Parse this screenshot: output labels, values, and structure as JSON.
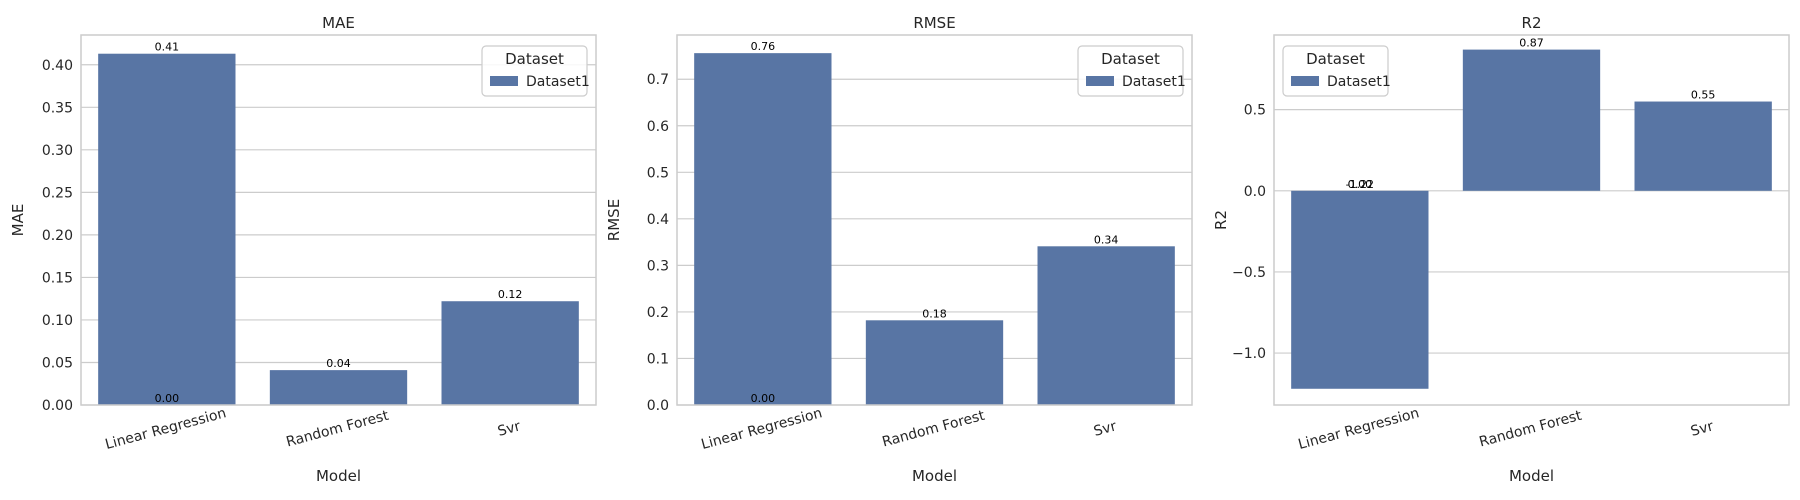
{
  "style": {
    "bar_color": "#5875a4",
    "grid_color": "#cccccc",
    "frame_color": "#cccccc",
    "text_color": "#262626",
    "label_color": "#000000"
  },
  "chart_data": [
    {
      "type": "bar",
      "title": "MAE",
      "xlabel": "Model",
      "ylabel": "MAE",
      "categories": [
        "Linear Regression",
        "Random Forest",
        "Svr"
      ],
      "series": [
        {
          "name": "Dataset1",
          "values": [
            0.413,
            0.041,
            0.122
          ]
        }
      ],
      "data_labels": [
        "0.41",
        "0.04",
        "0.12"
      ],
      "extra_labels": [
        {
          "category": "Linear Regression",
          "value": 0,
          "text": "0.00"
        }
      ],
      "ylim": [
        0,
        0.435
      ],
      "yticks": [
        0.0,
        0.05,
        0.1,
        0.15,
        0.2,
        0.25,
        0.3,
        0.35,
        0.4
      ],
      "ytick_labels": [
        "0.00",
        "0.05",
        "0.10",
        "0.15",
        "0.20",
        "0.25",
        "0.30",
        "0.35",
        "0.40"
      ],
      "grid": true,
      "legend": {
        "title": "Dataset",
        "position": "top-right"
      }
    },
    {
      "type": "bar",
      "title": "RMSE",
      "xlabel": "Model",
      "ylabel": "RMSE",
      "categories": [
        "Linear Regression",
        "Random Forest",
        "Svr"
      ],
      "series": [
        {
          "name": "Dataset1",
          "values": [
            0.756,
            0.182,
            0.341
          ]
        }
      ],
      "data_labels": [
        "0.76",
        "0.18",
        "0.34"
      ],
      "extra_labels": [
        {
          "category": "Linear Regression",
          "value": 0,
          "text": "0.00"
        }
      ],
      "ylim": [
        0,
        0.795
      ],
      "yticks": [
        0.0,
        0.1,
        0.2,
        0.3,
        0.4,
        0.5,
        0.6,
        0.7
      ],
      "ytick_labels": [
        "0.0",
        "0.1",
        "0.2",
        "0.3",
        "0.4",
        "0.5",
        "0.6",
        "0.7"
      ],
      "grid": true,
      "legend": {
        "title": "Dataset",
        "position": "top-right"
      }
    },
    {
      "type": "bar",
      "title": "R2",
      "xlabel": "Model",
      "ylabel": "R2",
      "categories": [
        "Linear Regression",
        "Random Forest",
        "Svr"
      ],
      "series": [
        {
          "name": "Dataset1",
          "values": [
            -1.22,
            0.87,
            0.55
          ]
        }
      ],
      "data_labels": [
        "-1.22",
        "0.87",
        "0.55"
      ],
      "extra_labels": [
        {
          "category": "Linear Regression",
          "value": 0,
          "text": "0.00"
        }
      ],
      "ylim": [
        -1.32,
        0.96
      ],
      "yticks": [
        -1.0,
        -0.5,
        0.0,
        0.5
      ],
      "ytick_labels": [
        "−1.0",
        "−0.5",
        "0.0",
        "0.5"
      ],
      "grid": true,
      "legend": {
        "title": "Dataset",
        "position": "top-left"
      }
    }
  ]
}
